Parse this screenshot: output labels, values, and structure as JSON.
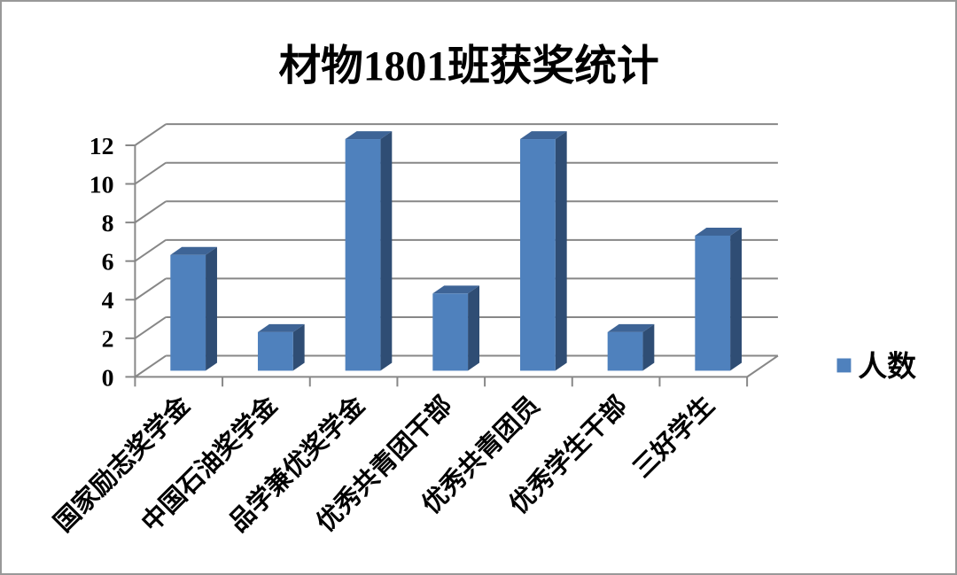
{
  "chart_data": {
    "type": "bar",
    "style": "3d-column",
    "title": "材物1801班获奖统计",
    "xlabel": "",
    "ylabel": "",
    "categories": [
      "国家励志奖学金",
      "中国石油奖学金",
      "品学兼优奖学金",
      "优秀共青团干部",
      "优秀共青团员",
      "优秀学生干部",
      "三好学生"
    ],
    "series": [
      {
        "name": "人数",
        "values": [
          6,
          2,
          12,
          4,
          12,
          2,
          7
        ]
      }
    ],
    "yticks": [
      0,
      2,
      4,
      6,
      8,
      10,
      12
    ],
    "ylim": [
      0,
      12
    ],
    "grid": true,
    "legend_position": "right",
    "colors": {
      "bar_front": "#4f81bd",
      "bar_top": "#3e6496",
      "bar_side": "#2f4d74",
      "axis": "#878787",
      "text": "#000000",
      "frame_border": "#999999",
      "background": "#ffffff"
    }
  }
}
